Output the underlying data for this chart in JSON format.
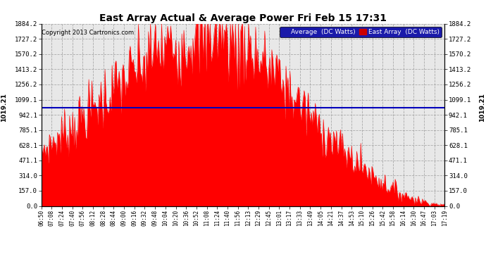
{
  "title": "East Array Actual & Average Power Fri Feb 15 17:31",
  "copyright": "Copyright 2013 Cartronics.com",
  "ymax": 1884.2,
  "yticks": [
    0.0,
    157.0,
    314.0,
    471.1,
    628.1,
    785.1,
    942.1,
    1099.1,
    1256.2,
    1413.2,
    1570.2,
    1727.2,
    1884.2
  ],
  "hline_value": 1019.21,
  "hline_label": "1019.21",
  "fill_color": "#ff0000",
  "avg_color": "#0000bb",
  "background_color": "#ffffff",
  "plot_background": "#e8e8e8",
  "grid_color": "#999999",
  "legend_avg_bg": "#1a1aaa",
  "legend_east_bg": "#cc0000",
  "xtick_labels": [
    "06:50",
    "07:08",
    "07:24",
    "07:40",
    "07:56",
    "08:12",
    "08:28",
    "08:44",
    "09:00",
    "09:16",
    "09:32",
    "09:48",
    "10:04",
    "10:20",
    "10:36",
    "10:52",
    "11:08",
    "11:24",
    "11:40",
    "11:56",
    "12:13",
    "12:29",
    "12:45",
    "13:01",
    "13:17",
    "13:33",
    "13:49",
    "14:05",
    "14:21",
    "14:37",
    "14:53",
    "15:10",
    "15:26",
    "15:42",
    "15:58",
    "16:14",
    "16:30",
    "16:47",
    "17:03",
    "17:19"
  ],
  "n_points": 400
}
